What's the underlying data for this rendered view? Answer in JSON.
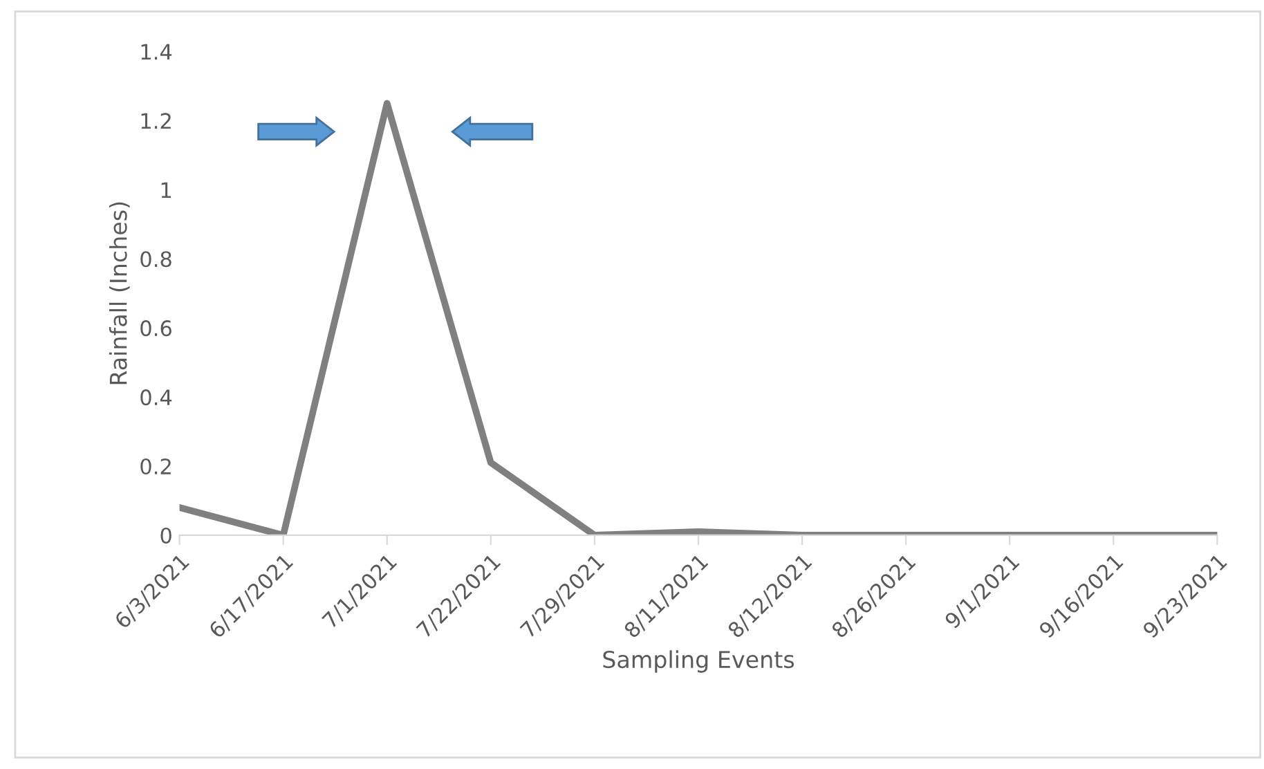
{
  "chart_data": {
    "type": "line",
    "xlabel": "Sampling Events",
    "ylabel": "Rainfall (Inches)",
    "categories": [
      "6/3/2021",
      "6/17/2021",
      "7/1/2021",
      "7/22/2021",
      "7/29/2021",
      "8/11/2021",
      "8/12/2021",
      "8/26/2021",
      "9/1/2021",
      "9/16/2021",
      "9/23/2021"
    ],
    "series": [
      {
        "color": "#808080",
        "values": [
          0.08,
          0,
          1.25,
          0.21,
          0,
          0.01,
          0,
          0,
          0,
          0,
          0
        ]
      }
    ],
    "ylim": [
      0,
      1.4
    ],
    "yticks": [
      0,
      0.2,
      0.4,
      0.6,
      0.8,
      1,
      1.2,
      1.4
    ],
    "grid": false,
    "legend": false,
    "marker": "none",
    "line_style": "solid"
  }
}
